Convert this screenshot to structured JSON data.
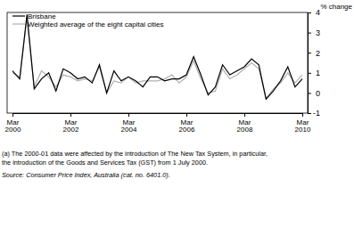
{
  "chart_data": {
    "type": "line",
    "y_label": "% change",
    "footnote": [
      "(a) The 2000-01 data were affected by the introduction of The New Tax System, in particular,",
      "the introduction of the Goods and Services Tax (GST) from 1 July 2000."
    ],
    "source": "Source: Consumer Price Index, Australia (cat. no. 6401.0).",
    "categories": [
      "Mar 2000",
      null,
      null,
      null,
      null,
      null,
      null,
      null,
      "Mar 2002",
      null,
      null,
      null,
      null,
      null,
      null,
      null,
      "Mar 2004",
      null,
      null,
      null,
      null,
      null,
      null,
      null,
      "Mar 2006",
      null,
      null,
      null,
      null,
      null,
      null,
      null,
      "Mar 2008",
      null,
      null,
      null,
      null,
      null,
      null,
      null,
      "Mar 2010"
    ],
    "series": [
      {
        "name": "Brisbane",
        "color": "#000000",
        "values": [
          1.1,
          0.7,
          3.9,
          0.2,
          0.7,
          1.0,
          0.1,
          1.2,
          1.0,
          0.7,
          0.8,
          0.5,
          1.4,
          0.0,
          1.1,
          0.6,
          0.8,
          0.6,
          0.3,
          0.8,
          0.8,
          0.6,
          0.7,
          0.7,
          0.9,
          1.8,
          0.9,
          -0.1,
          0.3,
          1.4,
          0.9,
          1.1,
          1.3,
          1.7,
          1.4,
          -0.3,
          0.1,
          0.6,
          1.3,
          0.3,
          0.7
        ]
      },
      {
        "name": "Weighted average of the eight capital cities",
        "color": "#b0b0b0",
        "values": [
          1.0,
          0.8,
          3.7,
          0.3,
          1.1,
          0.8,
          0.3,
          0.9,
          0.8,
          0.6,
          0.7,
          0.6,
          1.3,
          0.0,
          0.6,
          0.5,
          0.8,
          0.5,
          0.6,
          0.6,
          0.6,
          0.7,
          0.9,
          0.5,
          0.8,
          1.6,
          0.7,
          0.0,
          0.1,
          1.2,
          0.7,
          0.9,
          1.2,
          1.5,
          1.2,
          -0.3,
          0.2,
          0.5,
          1.0,
          0.5,
          0.9
        ]
      }
    ],
    "ylim": [
      -1,
      4
    ],
    "yticks": [
      -1,
      0,
      1,
      2,
      3,
      4
    ],
    "grid": false,
    "legend": "top-left"
  }
}
